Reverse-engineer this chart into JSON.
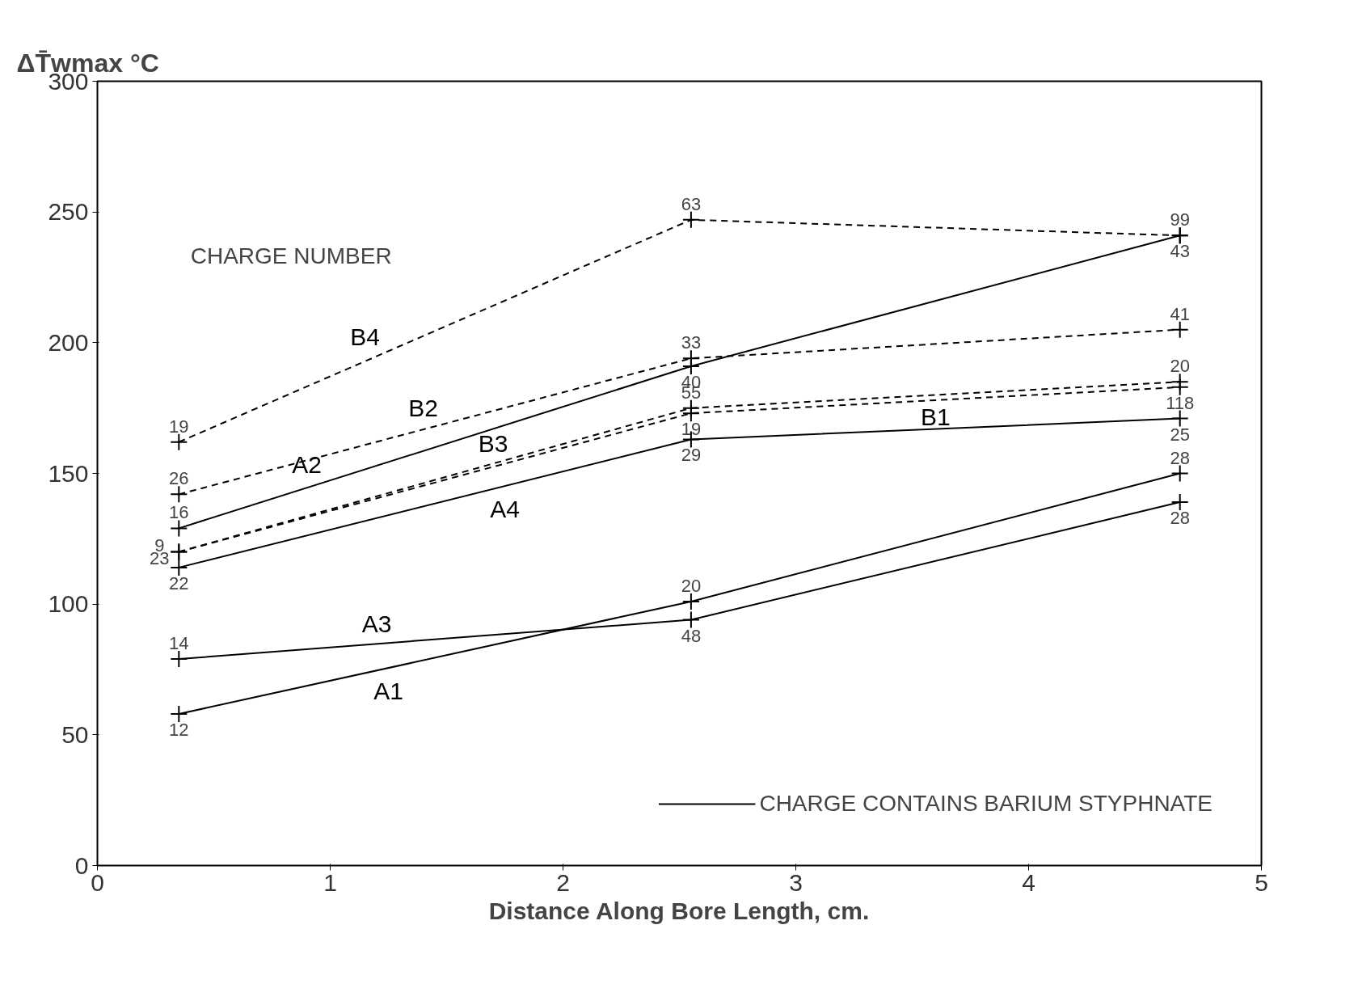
{
  "chart_data": {
    "type": "line",
    "ylabel": "ΔT̄wmax °C",
    "xlabel": "Distance Along Bore Length, cm.",
    "x": [
      0.35,
      2.55,
      4.65
    ],
    "series": [
      {
        "name": "B4",
        "color": "#000000",
        "line_style": "dashed",
        "values": [
          162,
          247,
          241
        ]
      },
      {
        "name": "A2",
        "color": "#000000",
        "line_style": "solid",
        "values": [
          129,
          191,
          241
        ]
      },
      {
        "name": "B2",
        "color": "#000000",
        "line_style": "dashed",
        "values": [
          142,
          194,
          205
        ]
      },
      {
        "name": "B3",
        "color": "#000000",
        "line_style": "dashed",
        "values": [
          120,
          175,
          185
        ]
      },
      {
        "name": "B1",
        "color": "#000000",
        "line_style": "dashed",
        "values": [
          120,
          173,
          183
        ]
      },
      {
        "name": "A4",
        "color": "#000000",
        "line_style": "solid",
        "values": [
          114,
          163,
          171
        ]
      },
      {
        "name": "A3",
        "color": "#000000",
        "line_style": "solid",
        "values": [
          79,
          94,
          139
        ]
      },
      {
        "name": "A1",
        "color": "#000000",
        "line_style": "solid",
        "values": [
          58,
          101,
          150
        ]
      }
    ],
    "marker": "cross",
    "xlim": [
      0,
      5
    ],
    "ylim": [
      0,
      300
    ],
    "xticks": [
      0,
      1,
      2,
      3,
      4,
      5
    ],
    "yticks": [
      0,
      50,
      100,
      150,
      200,
      250,
      300
    ],
    "grid": false,
    "legend_title": "CHARGE CONTAINS BARIUM STYPHNATE",
    "annotations": [
      "CHARGE NUMBER",
      {
        "text": "19",
        "x": 0.35,
        "y": 162
      },
      {
        "text": "26",
        "x": 0.35,
        "y": 142
      },
      {
        "text": "16",
        "x": 0.35,
        "y": 129
      },
      {
        "text": "9",
        "x": 0.35,
        "y": 120
      },
      {
        "text": "23",
        "x": 0.35,
        "y": 120
      },
      {
        "text": "22",
        "x": 0.35,
        "y": 114
      },
      {
        "text": "14",
        "x": 0.35,
        "y": 79
      },
      {
        "text": "12",
        "x": 0.35,
        "y": 58
      },
      {
        "text": "63",
        "x": 2.55,
        "y": 247
      },
      {
        "text": "33",
        "x": 2.55,
        "y": 194
      },
      {
        "text": "40",
        "x": 2.55,
        "y": 191
      },
      {
        "text": "55",
        "x": 2.55,
        "y": 175
      },
      {
        "text": "19",
        "x": 2.55,
        "y": 173
      },
      {
        "text": "29",
        "x": 2.55,
        "y": 163
      },
      {
        "text": "20",
        "x": 2.55,
        "y": 101
      },
      {
        "text": "48",
        "x": 2.55,
        "y": 94
      },
      {
        "text": "99",
        "x": 4.65,
        "y": 241
      },
      {
        "text": "43",
        "x": 4.65,
        "y": 241
      },
      {
        "text": "41",
        "x": 4.65,
        "y": 205
      },
      {
        "text": "20",
        "x": 4.65,
        "y": 185
      },
      {
        "text": "118",
        "x": 4.65,
        "y": 183
      },
      {
        "text": "25",
        "x": 4.65,
        "y": 171
      },
      {
        "text": "28",
        "x": 4.65,
        "y": 150
      },
      {
        "text": "28",
        "x": 4.65,
        "y": 139
      }
    ]
  }
}
